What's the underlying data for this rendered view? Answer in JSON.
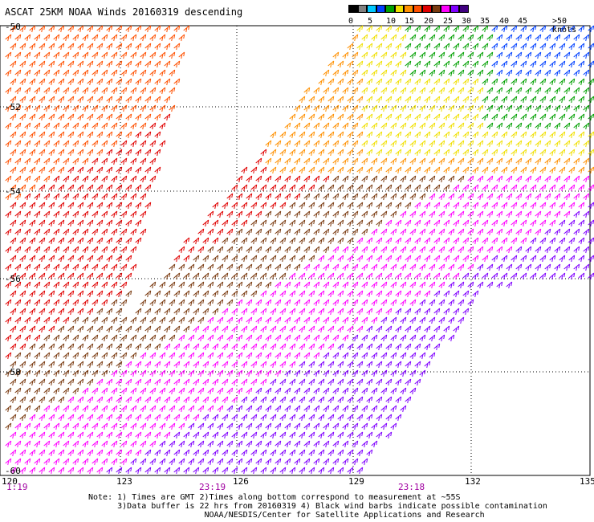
{
  "title": "ASCAT 25KM NOAA Winds 20160319 descending",
  "legend": {
    "labels": [
      "0",
      "5",
      "10",
      "15",
      "20",
      "25",
      "30",
      "35",
      "40",
      "45",
      ">50 knots"
    ],
    "colors": [
      "#000000",
      "#808080",
      "#00c8ff",
      "#0040ff",
      "#00a000",
      "#f0e000",
      "#ff9000",
      "#ff5000",
      "#e00000",
      "#7a3a10",
      "#ff00ff",
      "#8000ff",
      "#400080"
    ]
  },
  "map": {
    "lat_labels": [
      "-50",
      "-52",
      "-54",
      "-56",
      "-58",
      "-60"
    ],
    "lon_labels": [
      "120",
      "123",
      "126",
      "129",
      "132",
      "135"
    ],
    "time_labels": [
      "1:19",
      "23:19",
      "23:18"
    ],
    "time_color": "#a000a0"
  },
  "notes": [
    "Note: 1) Times are GMT 2)Times along bottom correspond to measurement at ~55S",
    "      3)Data buffer is 22 hrs from 20160319 4) Black wind barbs indicate possible contamination",
    "                        NOAA/NESDIS/Center for Satellite Applications and Research"
  ]
}
